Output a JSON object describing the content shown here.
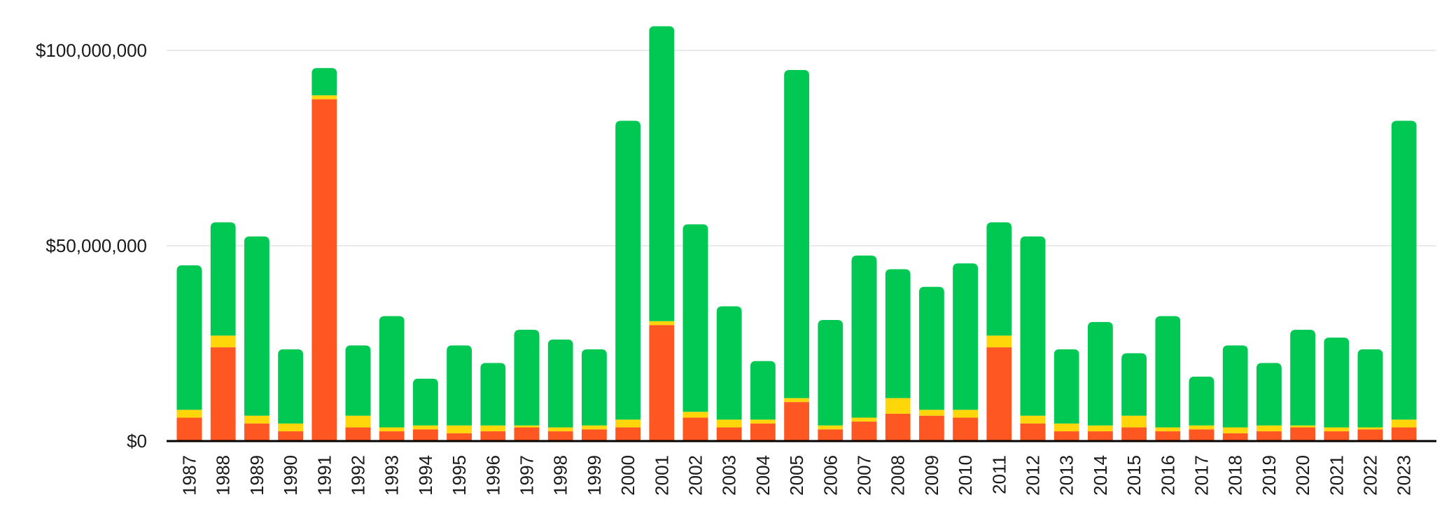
{
  "chart_data": {
    "type": "bar",
    "stacked": true,
    "categories": [
      "1987",
      "1988",
      "1989",
      "1990",
      "1991",
      "1992",
      "1993",
      "1994",
      "1995",
      "1996",
      "1997",
      "1998",
      "1999",
      "2000",
      "2001",
      "2002",
      "2003",
      "2004",
      "2005",
      "2006",
      "2007",
      "2008",
      "2009",
      "2010",
      "2011",
      "2012",
      "2013",
      "2014",
      "2015",
      "2016",
      "2017",
      "2018",
      "2019",
      "2020",
      "2021",
      "2022",
      "2023"
    ],
    "series": [
      {
        "color": "#ff5722",
        "values": [
          6000000,
          24000000,
          4500000,
          2500000,
          87500000,
          3500000,
          2500000,
          3000000,
          2000000,
          2500000,
          3500000,
          2500000,
          3000000,
          3500000,
          29700000,
          6000000,
          3500000,
          4500000,
          10000000,
          3000000,
          5000000,
          7000000,
          6500000,
          6000000,
          24000000,
          4500000,
          2500000,
          2500000,
          3500000,
          2500000,
          3000000,
          2000000,
          2500000,
          3500000,
          2500000,
          3000000,
          3500000
        ]
      },
      {
        "color": "#ffd60a",
        "values": [
          2000000,
          3000000,
          2000000,
          2000000,
          1000000,
          3000000,
          1000000,
          1000000,
          2000000,
          1500000,
          500000,
          1000000,
          1000000,
          2000000,
          1000000,
          1500000,
          2000000,
          1000000,
          1000000,
          1000000,
          1000000,
          4000000,
          1500000,
          2000000,
          3000000,
          2000000,
          2000000,
          1500000,
          3000000,
          1000000,
          1000000,
          1500000,
          1500000,
          500000,
          1000000,
          500000,
          2000000
        ]
      },
      {
        "color": "#00c853",
        "values": [
          37000000,
          29000000,
          45900000,
          19000000,
          7000000,
          18000000,
          28500000,
          12000000,
          20500000,
          16000000,
          24500000,
          22500000,
          19500000,
          76500000,
          75500000,
          48000000,
          29000000,
          15000000,
          84000000,
          27000000,
          41500000,
          33000000,
          31500000,
          37500000,
          29000000,
          45900000,
          19000000,
          26500000,
          16000000,
          28500000,
          12500000,
          21000000,
          16000000,
          24500000,
          23000000,
          20000000,
          76500000
        ]
      }
    ],
    "y_ticks": [
      "$0",
      "$50,000,000",
      "$100,000,000"
    ],
    "y_tick_values": [
      0,
      50000000,
      100000000
    ],
    "ylim": [
      0,
      107000000
    ],
    "grid": true,
    "legend": "none"
  }
}
